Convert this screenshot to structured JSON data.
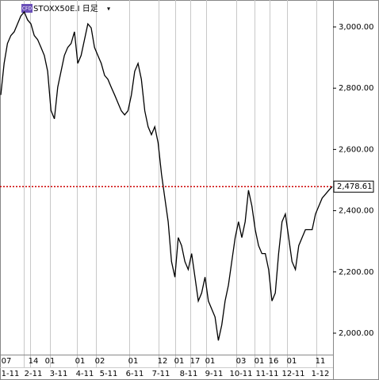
{
  "chart_data": {
    "type": "line",
    "title": "STOXX50E.I 日足",
    "badge": "CFD",
    "color": "#000000",
    "last_color": "#cc0000",
    "values": [
      2778,
      2881,
      2946,
      2972,
      2984,
      3010,
      3036,
      3049,
      3023,
      3010,
      2972,
      2959,
      2933,
      2907,
      2855,
      2727,
      2700,
      2803,
      2855,
      2907,
      2933,
      2946,
      2984,
      2881,
      2907,
      2959,
      3010,
      2997,
      2933,
      2907,
      2881,
      2842,
      2829,
      2803,
      2778,
      2752,
      2726,
      2713,
      2726,
      2778,
      2855,
      2881,
      2829,
      2726,
      2674,
      2648,
      2674,
      2622,
      2519,
      2441,
      2364,
      2234,
      2183,
      2312,
      2286,
      2234,
      2208,
      2260,
      2183,
      2105,
      2131,
      2183,
      2105,
      2079,
      2053,
      1976,
      2027,
      2105,
      2157,
      2234,
      2312,
      2364,
      2312,
      2364,
      2467,
      2415,
      2338,
      2286,
      2260,
      2260,
      2208,
      2105,
      2131,
      2260,
      2364,
      2389,
      2312,
      2234,
      2208,
      2286,
      2312,
      2338,
      2338,
      2338,
      2389,
      2415,
      2441,
      2454,
      2467,
      2478.61
    ],
    "last_value": {
      "value": 2478.61,
      "label": "2,478.61"
    },
    "ylim": [
      1930,
      3088
    ],
    "yticks": [
      {
        "value": 2000,
        "label": "2,000.00"
      },
      {
        "value": 2200,
        "label": "2,200.00"
      },
      {
        "value": 2400,
        "label": "2,400.00"
      },
      {
        "value": 2600,
        "label": "2,600.00"
      },
      {
        "value": 2800,
        "label": "2,800.00"
      },
      {
        "value": 3000,
        "label": "3,000.00"
      }
    ],
    "x_labels_top": [
      "07",
      "14",
      "01",
      "01",
      "02",
      "01",
      "12",
      "01",
      "17",
      "01",
      "03",
      "01",
      "16",
      "01",
      "11"
    ],
    "x_labels_bottom": [
      "1-11",
      "2-11",
      "3-11",
      "4-11",
      "5-11",
      "6-11",
      "7-11",
      "8-11",
      "9-11",
      "10-11",
      "11-11",
      "12-11",
      "1-12"
    ]
  }
}
